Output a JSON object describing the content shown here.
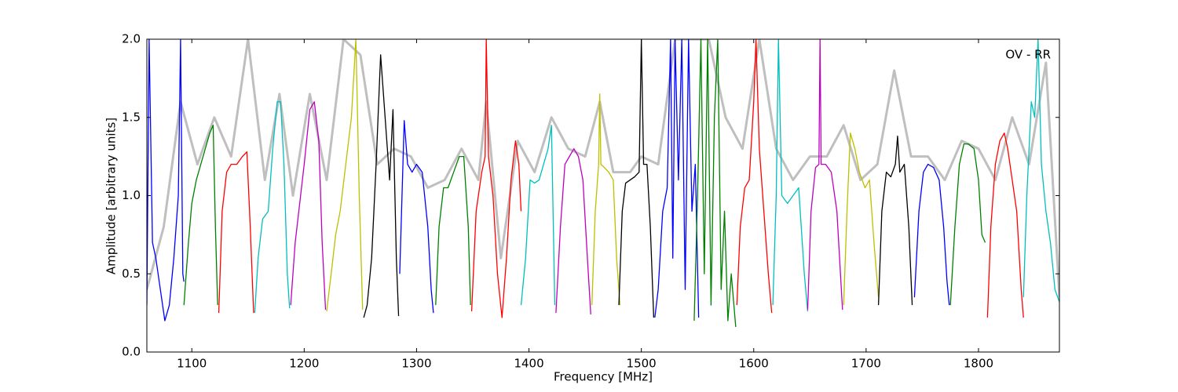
{
  "chart_data": {
    "type": "line",
    "annotation": "OV - RR",
    "xlabel": "Frequency [MHz]",
    "ylabel": "Amplitude [arbitrary units]",
    "xlim": [
      1060,
      1872
    ],
    "ylim": [
      0,
      2
    ],
    "xticks": [
      1100,
      1200,
      1300,
      1400,
      1500,
      1600,
      1700,
      1800
    ],
    "yticks": [
      {
        "value": 0,
        "label": "0.0"
      },
      0.5,
      {
        "value": 1,
        "label": "1.0"
      },
      1.5,
      {
        "value": 2,
        "label": "2.0"
      }
    ],
    "series": [
      {
        "color": "#bfbfbf",
        "x": [
          1060,
          1075,
          1090,
          1105,
          1120,
          1135,
          1150,
          1165,
          1178,
          1190,
          1205,
          1220,
          1235,
          1250,
          1265,
          1280,
          1295,
          1310,
          1325,
          1340,
          1355,
          1362,
          1375,
          1390,
          1405,
          1420,
          1435,
          1450,
          1463,
          1475,
          1490,
          1500,
          1515,
          1530,
          1545,
          1560,
          1575,
          1590,
          1605,
          1620,
          1635,
          1650,
          1665,
          1680,
          1695,
          1710,
          1725,
          1740,
          1755,
          1770,
          1785,
          1800,
          1815,
          1830,
          1845,
          1860,
          1872
        ],
        "values": [
          0.4,
          0.8,
          1.6,
          1.2,
          1.5,
          1.25,
          2.0,
          1.1,
          1.65,
          1.0,
          1.65,
          1.1,
          2.0,
          1.9,
          1.2,
          1.3,
          1.25,
          1.05,
          1.1,
          1.3,
          1.1,
          1.6,
          0.6,
          1.35,
          1.15,
          1.5,
          1.3,
          1.25,
          1.6,
          1.15,
          1.15,
          1.25,
          1.2,
          2.0,
          2.0,
          2.0,
          1.5,
          1.3,
          2.0,
          1.3,
          1.1,
          1.25,
          1.25,
          1.45,
          1.1,
          1.2,
          1.8,
          1.25,
          1.25,
          1.1,
          1.35,
          1.3,
          1.1,
          1.5,
          1.2,
          1.85,
          0.35
        ]
      },
      {
        "color": "#0000ff",
        "x": [
          1060,
          1062,
          1065,
          1068,
          1072,
          1076,
          1080,
          1084,
          1088,
          1090,
          1092,
          1093
        ],
        "values": [
          0.3,
          2.0,
          0.7,
          0.6,
          0.4,
          0.2,
          0.3,
          0.6,
          1.0,
          2.0,
          0.5,
          0.45
        ]
      },
      {
        "color": "#008000",
        "x": [
          1093,
          1097,
          1100,
          1104,
          1108,
          1112,
          1116,
          1119,
          1121,
          1123
        ],
        "values": [
          0.3,
          0.7,
          0.95,
          1.1,
          1.2,
          1.3,
          1.4,
          1.45,
          0.8,
          0.3
        ]
      },
      {
        "color": "#ff0000",
        "x": [
          1124,
          1127,
          1131,
          1135,
          1140,
          1145,
          1149,
          1152,
          1155
        ],
        "values": [
          0.25,
          0.9,
          1.15,
          1.2,
          1.2,
          1.25,
          1.28,
          0.8,
          0.25
        ]
      },
      {
        "color": "#00bfbf",
        "x": [
          1156,
          1159,
          1163,
          1168,
          1172,
          1176,
          1179,
          1182,
          1185,
          1187
        ],
        "values": [
          0.25,
          0.6,
          0.85,
          0.9,
          1.3,
          1.6,
          1.6,
          1.2,
          0.5,
          0.28
        ]
      },
      {
        "color": "#bf00bf",
        "x": [
          1188,
          1192,
          1196,
          1200,
          1205,
          1209,
          1213,
          1216,
          1219
        ],
        "values": [
          0.3,
          0.7,
          0.95,
          1.2,
          1.55,
          1.6,
          1.35,
          0.7,
          0.27
        ]
      },
      {
        "color": "#bfbf00",
        "x": [
          1220,
          1224,
          1228,
          1232,
          1237,
          1242,
          1246,
          1249,
          1252
        ],
        "values": [
          0.26,
          0.5,
          0.75,
          0.9,
          1.2,
          1.5,
          2.0,
          1.0,
          0.27
        ]
      },
      {
        "color": "#000000",
        "x": [
          1253,
          1256,
          1260,
          1264,
          1268,
          1272,
          1276,
          1279,
          1282,
          1284
        ],
        "values": [
          0.22,
          0.3,
          0.6,
          1.2,
          1.9,
          1.5,
          1.1,
          1.55,
          0.6,
          0.23
        ]
      },
      {
        "color": "#0000ff",
        "x": [
          1285,
          1289,
          1292,
          1296,
          1300,
          1305,
          1310,
          1313,
          1315
        ],
        "values": [
          0.5,
          1.48,
          1.2,
          1.15,
          1.2,
          1.15,
          0.8,
          0.4,
          0.25
        ]
      },
      {
        "color": "#008000",
        "x": [
          1317,
          1320,
          1324,
          1328,
          1333,
          1338,
          1342,
          1346,
          1348
        ],
        "values": [
          0.3,
          0.8,
          1.05,
          1.05,
          1.15,
          1.25,
          1.25,
          0.8,
          0.3
        ]
      },
      {
        "color": "#ff0000",
        "x": [
          1349,
          1353,
          1358,
          1361,
          1362,
          1364,
          1368,
          1372,
          1376,
          1380,
          1384,
          1388,
          1391,
          1393
        ],
        "values": [
          0.26,
          0.9,
          1.15,
          1.25,
          2.0,
          1.25,
          1.0,
          0.5,
          0.22,
          0.6,
          1.1,
          1.35,
          1.2,
          0.9
        ]
      },
      {
        "color": "#00bfbf",
        "x": [
          1393,
          1397,
          1401,
          1405,
          1409,
          1413,
          1417,
          1420,
          1423
        ],
        "values": [
          0.3,
          0.6,
          1.1,
          1.08,
          1.1,
          1.2,
          1.3,
          1.45,
          0.3
        ]
      },
      {
        "color": "#bf00bf",
        "x": [
          1424,
          1428,
          1432,
          1436,
          1440,
          1444,
          1448,
          1452,
          1455
        ],
        "values": [
          0.25,
          0.8,
          1.2,
          1.25,
          1.3,
          1.25,
          1.1,
          0.6,
          0.24
        ]
      },
      {
        "color": "#bfbf00",
        "x": [
          1456,
          1459,
          1462,
          1463,
          1464,
          1467,
          1471,
          1475,
          1478,
          1481
        ],
        "values": [
          0.3,
          0.9,
          1.2,
          1.65,
          1.2,
          1.18,
          1.15,
          1.1,
          0.6,
          0.3
        ]
      },
      {
        "color": "#000000",
        "x": [
          1480,
          1483,
          1486,
          1490,
          1494,
          1498,
          1500,
          1502,
          1505,
          1508,
          1511
        ],
        "values": [
          0.3,
          0.9,
          1.08,
          1.1,
          1.12,
          1.15,
          2.0,
          1.2,
          1.2,
          0.8,
          0.22
        ]
      },
      {
        "color": "#0000ff",
        "x": [
          1512,
          1515,
          1519,
          1523,
          1526,
          1528,
          1530,
          1533,
          1536,
          1539,
          1542,
          1545,
          1548,
          1551
        ],
        "values": [
          0.22,
          0.4,
          0.9,
          1.05,
          2.0,
          0.6,
          2.0,
          1.1,
          2.0,
          0.4,
          2.0,
          0.9,
          1.2,
          0.22
        ]
      },
      {
        "color": "#008000",
        "x": [
          1547,
          1550,
          1553,
          1556,
          1559,
          1562,
          1565,
          1568,
          1571,
          1574,
          1577,
          1580,
          1584
        ],
        "values": [
          0.2,
          1.0,
          2.0,
          0.5,
          2.0,
          0.3,
          1.5,
          2.0,
          0.4,
          0.9,
          0.2,
          0.5,
          0.16
        ]
      },
      {
        "color": "#ff0000",
        "x": [
          1585,
          1588,
          1592,
          1596,
          1600,
          1602,
          1605,
          1609,
          1613,
          1616
        ],
        "values": [
          0.3,
          0.8,
          1.05,
          1.1,
          1.6,
          2.0,
          1.3,
          0.9,
          0.5,
          0.25
        ]
      },
      {
        "color": "#00bfbf",
        "x": [
          1617,
          1620,
          1622,
          1625,
          1630,
          1635,
          1640,
          1645,
          1648
        ],
        "values": [
          0.3,
          1.0,
          2.0,
          1.0,
          0.95,
          1.0,
          1.05,
          0.5,
          0.26
        ]
      },
      {
        "color": "#bf00bf",
        "x": [
          1648,
          1651,
          1655,
          1658,
          1659,
          1660,
          1664,
          1669,
          1674,
          1679
        ],
        "values": [
          0.27,
          0.9,
          1.18,
          1.2,
          2.0,
          1.2,
          1.2,
          1.15,
          0.9,
          0.27
        ]
      },
      {
        "color": "#bfbf00",
        "x": [
          1680,
          1683,
          1686,
          1690,
          1694,
          1699,
          1703,
          1707,
          1711
        ],
        "values": [
          0.3,
          0.9,
          1.4,
          1.3,
          1.15,
          1.05,
          1.1,
          0.7,
          0.35
        ]
      },
      {
        "color": "#000000",
        "x": [
          1711,
          1714,
          1718,
          1722,
          1726,
          1728,
          1730,
          1734,
          1738,
          1741
        ],
        "values": [
          0.3,
          0.9,
          1.15,
          1.12,
          1.2,
          1.38,
          1.15,
          1.2,
          0.8,
          0.3
        ]
      },
      {
        "color": "#0000ff",
        "x": [
          1743,
          1747,
          1751,
          1755,
          1760,
          1765,
          1769,
          1772,
          1774
        ],
        "values": [
          0.35,
          0.9,
          1.15,
          1.2,
          1.18,
          1.1,
          0.8,
          0.45,
          0.3
        ]
      },
      {
        "color": "#008000",
        "x": [
          1775,
          1779,
          1783,
          1787,
          1791,
          1796,
          1800,
          1803,
          1806
        ],
        "values": [
          0.3,
          0.8,
          1.2,
          1.33,
          1.33,
          1.3,
          1.1,
          0.75,
          0.7
        ]
      },
      {
        "color": "#ff0000",
        "x": [
          1808,
          1811,
          1815,
          1819,
          1823,
          1826,
          1830,
          1834,
          1838,
          1840
        ],
        "values": [
          0.22,
          0.8,
          1.2,
          1.35,
          1.4,
          1.3,
          1.1,
          0.9,
          0.4,
          0.22
        ]
      },
      {
        "color": "#00bfbf",
        "x": [
          1840,
          1843,
          1847,
          1850,
          1853,
          1856,
          1860,
          1864,
          1868,
          1872
        ],
        "values": [
          0.35,
          1.0,
          1.6,
          1.5,
          2.0,
          1.2,
          0.9,
          0.7,
          0.4,
          0.32
        ]
      }
    ]
  }
}
